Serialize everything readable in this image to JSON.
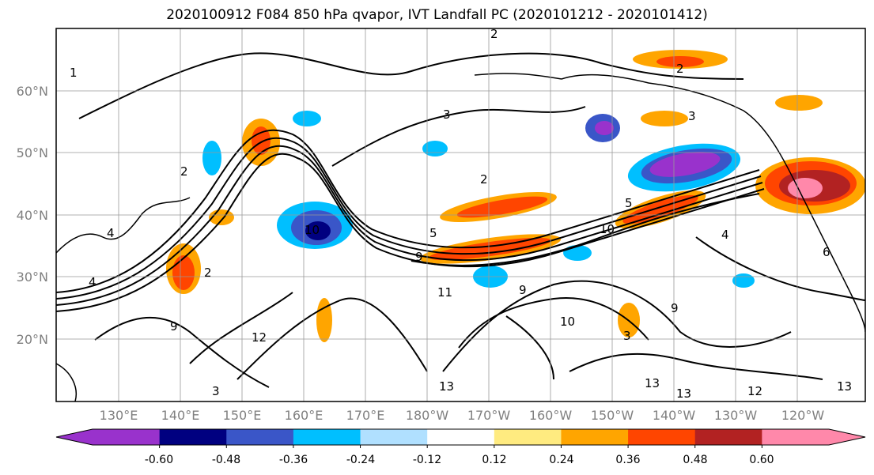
{
  "title": "2020100912 F084 850 hPa qvapor, IVT Landfall PC (2020101212 - 2020101412)",
  "map": {
    "projection": "PlateCarree",
    "lon_range": [
      120,
      245
    ],
    "lat_range": [
      10,
      70
    ],
    "grid": true,
    "x_ticks": [
      "130°E",
      "140°E",
      "150°E",
      "160°E",
      "170°E",
      "180°W",
      "170°W",
      "160°W",
      "150°W",
      "140°W",
      "130°W",
      "120°W"
    ],
    "y_ticks": [
      "20°N",
      "30°N",
      "40°N",
      "50°N",
      "60°N"
    ],
    "contour_labels": [
      "1",
      "2",
      "3",
      "2",
      "3",
      "2",
      "10",
      "5",
      "9",
      "11",
      "12",
      "13",
      "13",
      "13",
      "13",
      "2",
      "4",
      "9",
      "9",
      "12",
      "3",
      "10",
      "5",
      "4",
      "9",
      "3",
      "10",
      "6",
      "4",
      "2"
    ]
  },
  "colorbar": {
    "tick_labels": [
      "-0.60",
      "-0.48",
      "-0.36",
      "-0.24",
      "-0.12",
      "0.12",
      "0.24",
      "0.36",
      "0.48",
      "0.60"
    ],
    "colors": [
      "#9932cc",
      "#000080",
      "#3a56c8",
      "#00bfff",
      "#b0e0ff",
      "#ffffff",
      "#ffeb80",
      "#ffa500",
      "#ff4500",
      "#b22222",
      "#ff88aa"
    ],
    "extend": "both"
  },
  "chart_data": {
    "type": "heatmap",
    "title": "2020100912 F084 850 hPa qvapor, IVT Landfall PC (2020101212 - 2020101412)",
    "xlabel": "",
    "ylabel": "",
    "x_ticks": [
      "130°E",
      "140°E",
      "150°E",
      "160°E",
      "170°E",
      "180°W",
      "170°W",
      "160°W",
      "150°W",
      "140°W",
      "130°W",
      "120°W"
    ],
    "y_ticks": [
      "20°N",
      "30°N",
      "40°N",
      "50°N",
      "60°N"
    ],
    "color_levels": [
      -0.6,
      -0.48,
      -0.36,
      -0.24,
      -0.12,
      0.12,
      0.24,
      0.36,
      0.48,
      0.6
    ],
    "grid": true
  }
}
